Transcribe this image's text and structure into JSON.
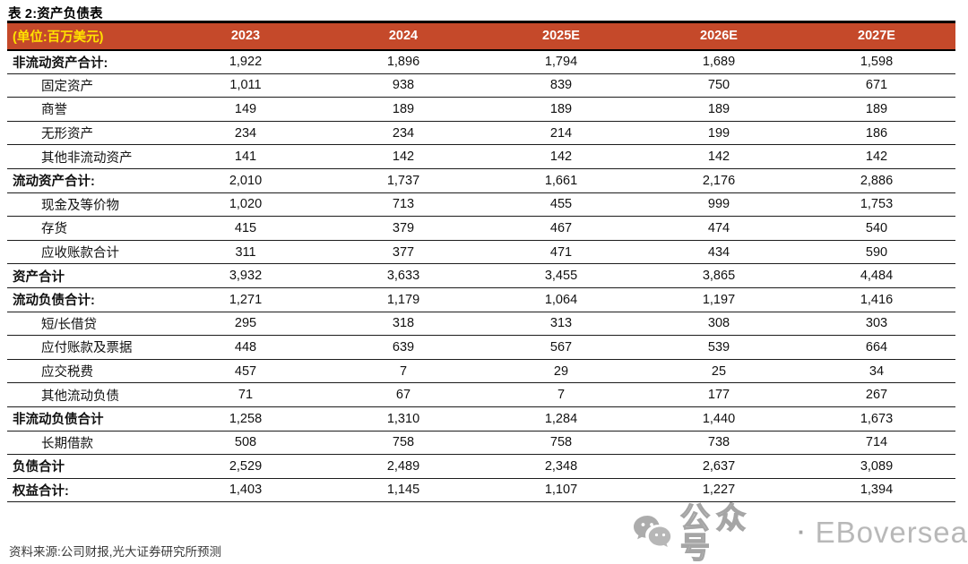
{
  "page": {
    "title": "表 2:资产负债表"
  },
  "table": {
    "unit_label": "(单位:百万美元)",
    "year_columns": [
      "2023",
      "2024",
      "2025E",
      "2026E",
      "2027E"
    ],
    "rows": [
      {
        "label": "非流动资产合计:",
        "style": "section",
        "values": [
          "1,922",
          "1,896",
          "1,794",
          "1,689",
          "1,598"
        ]
      },
      {
        "label": "固定资产",
        "style": "item",
        "values": [
          "1,011",
          "938",
          "839",
          "750",
          "671"
        ]
      },
      {
        "label": "商誉",
        "style": "item",
        "values": [
          "149",
          "189",
          "189",
          "189",
          "189"
        ]
      },
      {
        "label": "无形资产",
        "style": "item",
        "values": [
          "234",
          "234",
          "214",
          "199",
          "186"
        ]
      },
      {
        "label": "其他非流动资产",
        "style": "item",
        "values": [
          "141",
          "142",
          "142",
          "142",
          "142"
        ]
      },
      {
        "label": "流动资产合计:",
        "style": "section",
        "values": [
          "2,010",
          "1,737",
          "1,661",
          "2,176",
          "2,886"
        ]
      },
      {
        "label": "现金及等价物",
        "style": "item",
        "values": [
          "1,020",
          "713",
          "455",
          "999",
          "1,753"
        ]
      },
      {
        "label": "存货",
        "style": "item",
        "values": [
          "415",
          "379",
          "467",
          "474",
          "540"
        ]
      },
      {
        "label": "应收账款合计",
        "style": "item",
        "values": [
          "311",
          "377",
          "471",
          "434",
          "590"
        ]
      },
      {
        "label": "资产合计",
        "style": "section",
        "values": [
          "3,932",
          "3,633",
          "3,455",
          "3,865",
          "4,484"
        ]
      },
      {
        "label": "流动负债合计:",
        "style": "section",
        "values": [
          "1,271",
          "1,179",
          "1,064",
          "1,197",
          "1,416"
        ]
      },
      {
        "label": "短/长借贷",
        "style": "item",
        "values": [
          "295",
          "318",
          "313",
          "308",
          "303"
        ]
      },
      {
        "label": "应付账款及票据",
        "style": "item",
        "values": [
          "448",
          "639",
          "567",
          "539",
          "664"
        ]
      },
      {
        "label": "应交税费",
        "style": "item",
        "values": [
          "457",
          "7",
          "29",
          "25",
          "34"
        ]
      },
      {
        "label": "其他流动负债",
        "style": "item",
        "values": [
          "71",
          "67",
          "7",
          "177",
          "267"
        ]
      },
      {
        "label": "非流动负债合计",
        "style": "section",
        "values": [
          "1,258",
          "1,310",
          "1,284",
          "1,440",
          "1,673"
        ]
      },
      {
        "label": "长期借款",
        "style": "item",
        "values": [
          "508",
          "758",
          "758",
          "738",
          "714"
        ]
      },
      {
        "label": "负债合计",
        "style": "section",
        "values": [
          "2,529",
          "2,489",
          "2,348",
          "2,637",
          "3,089"
        ]
      },
      {
        "label": "权益合计:",
        "style": "section",
        "values": [
          "1,403",
          "1,145",
          "1,107",
          "1,227",
          "1,394"
        ]
      }
    ]
  },
  "footer": {
    "source_text": "资料来源:公司财报,光大证券研究所预测"
  },
  "watermark": {
    "icon": "wechat-icon",
    "label": "公众号",
    "separator": "·",
    "brand": "EBoversea"
  },
  "colors": {
    "header_bg": "#C5492A",
    "unit_text": "#FFE100",
    "header_text": "#FFFFFF",
    "watermark_gray": "#A5A5A5"
  }
}
